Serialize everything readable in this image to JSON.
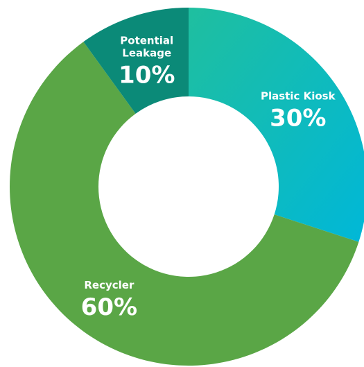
{
  "chart_data": {
    "type": "pie",
    "variant": "donut",
    "title": "",
    "start_angle_deg": 0,
    "direction": "clockwise",
    "slices": [
      {
        "label": "Plastic Kiosk",
        "label_lines": [
          "Plastic Kiosk"
        ],
        "value": 30,
        "value_label": "30%",
        "color_start": "#1fbf9f",
        "color_end": "#00b7d8"
      },
      {
        "label": "Recycler",
        "label_lines": [
          "Recycler"
        ],
        "value": 60,
        "value_label": "60%",
        "color": "#5aa646"
      },
      {
        "label": "Potential Leakage",
        "label_lines": [
          "Potential",
          "Leakage"
        ],
        "value": 10,
        "value_label": "10%",
        "color": "#0b8a78"
      }
    ]
  }
}
